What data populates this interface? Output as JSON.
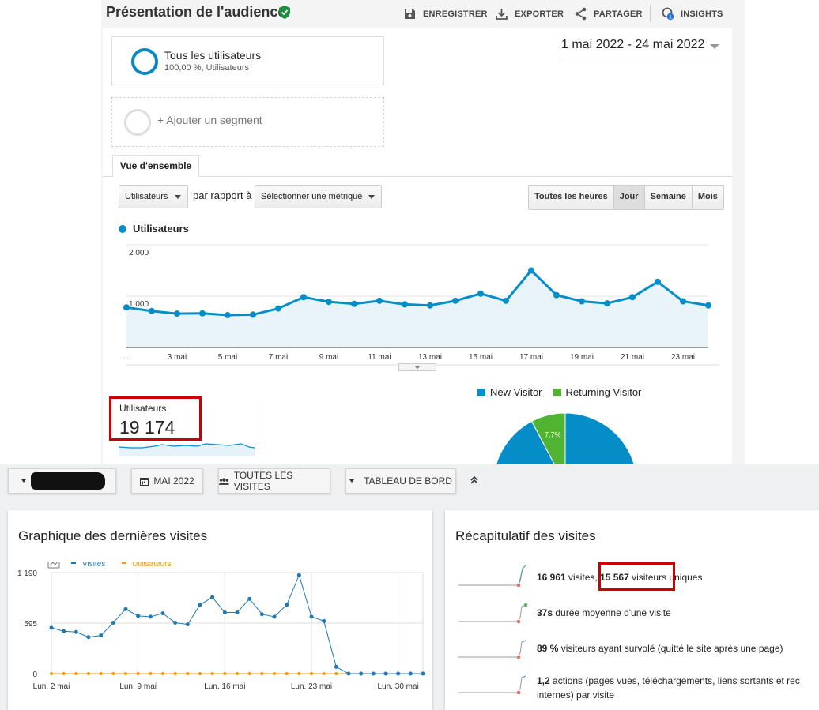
{
  "ga": {
    "title": "Présentation de l'audience",
    "actions": {
      "save": "ENREGISTRER",
      "export": "EXPORTER",
      "share": "PARTAGER",
      "insights": "INSIGHTS",
      "insights_badge": "1"
    },
    "segments": {
      "all_users_name": "Tous les utilisateurs",
      "all_users_sub": "100,00 %, Utilisateurs",
      "add_segment": "+ Ajouter un segment"
    },
    "date_range": "1 mai 2022 - 24 mai 2022",
    "tab_overview": "Vue d'ensemble",
    "metric_select": "Utilisateurs",
    "compare_text": "par rapport à",
    "compare_select": "Sélectionner une métrique",
    "periods": [
      "Toutes les heures",
      "Jour",
      "Semaine",
      "Mois"
    ],
    "active_period": "Jour",
    "legend_label": "Utilisateurs",
    "users_label": "Utilisateurs",
    "users_value": "19 174",
    "pie_legend": {
      "new": "New Visitor",
      "returning": "Returning Visitor"
    },
    "pie_label": "7,7%",
    "colors": {
      "line": "#058dc7",
      "new_visitor": "#058dc7",
      "returning_visitor": "#50b432",
      "highlight": "#cc0000"
    }
  },
  "chart_data": [
    {
      "type": "area",
      "series": [
        {
          "name": "Utilisateurs",
          "values": [
            780,
            710,
            660,
            665,
            630,
            640,
            760,
            980,
            890,
            850,
            910,
            840,
            820,
            910,
            1050,
            910,
            1500,
            1020,
            900,
            860,
            980,
            1280,
            900,
            820
          ]
        }
      ],
      "x": [
        "1 mai",
        "2 mai",
        "3 mai",
        "4 mai",
        "5 mai",
        "6 mai",
        "7 mai",
        "8 mai",
        "9 mai",
        "10 mai",
        "11 mai",
        "12 mai",
        "13 mai",
        "14 mai",
        "15 mai",
        "16 mai",
        "17 mai",
        "18 mai",
        "19 mai",
        "20 mai",
        "21 mai",
        "22 mai",
        "23 mai",
        "24 mai"
      ],
      "x_tick_labels": [
        "…",
        "3 mai",
        "5 mai",
        "7 mai",
        "9 mai",
        "11 mai",
        "13 mai",
        "15 mai",
        "17 mai",
        "19 mai",
        "21 mai",
        "23 mai"
      ],
      "y_tick_labels": [
        "2 000",
        "1 000"
      ],
      "ylim": [
        0,
        2000
      ],
      "grid": true
    },
    {
      "type": "line",
      "series": [
        {
          "name": "Visites",
          "values": [
            540,
            500,
            490,
            430,
            450,
            600,
            760,
            680,
            670,
            710,
            600,
            580,
            810,
            900,
            720,
            720,
            880,
            700,
            670,
            810,
            1160,
            670,
            620,
            80,
            0,
            0,
            0,
            0,
            0,
            0,
            0
          ]
        },
        {
          "name": "Utilisateurs",
          "values": [
            0,
            0,
            0,
            0,
            0,
            0,
            0,
            0,
            0,
            0,
            0,
            0,
            0,
            0,
            0,
            0,
            0,
            0,
            0,
            0,
            0,
            0,
            0,
            0,
            0,
            0,
            0,
            0,
            0,
            0,
            0
          ]
        }
      ],
      "x_tick_labels": [
        "Lun. 2 mai",
        "Lun. 9 mai",
        "Lun. 16 mai",
        "Lun. 23 mai",
        "Lun. 30 mai"
      ],
      "y_tick_labels": [
        "1 190",
        "595",
        "0"
      ],
      "ylim": [
        0,
        1190
      ],
      "grid": true
    },
    {
      "type": "pie",
      "series": [
        {
          "name": "",
          "values": [
            92.3,
            7.7
          ]
        }
      ],
      "categories": [
        "New Visitor",
        "Returning Visitor"
      ]
    }
  ],
  "matomo": {
    "date_button": "MAI 2022",
    "segment_button": "TOUTES LES VISITES",
    "dashboard_button": "TABLEAU DE BORD",
    "graph_title": "Graphique des dernières visites",
    "graph_legend": {
      "visits": "Visites",
      "users": "Utilisateurs"
    },
    "summary_title": "Récapitulatif des visites",
    "summary": {
      "visits_value": "16 961",
      "visits_label": " visites, ",
      "unique_value": "15 567",
      "unique_label": " visiteurs uniques",
      "duration_value": "37s",
      "duration_label": " durée moyenne d'une visite",
      "bounce_value": "89 %",
      "bounce_label": " visiteurs ayant survolé (quitté le site après une page)",
      "actions_value": "1,2",
      "actions_label_line1": " actions (pages vues, téléchargements, liens sortants et rec",
      "actions_label_line2": "internes) par visite"
    },
    "colors": {
      "visits": "#1f78b4",
      "users": "#ff9600"
    }
  }
}
